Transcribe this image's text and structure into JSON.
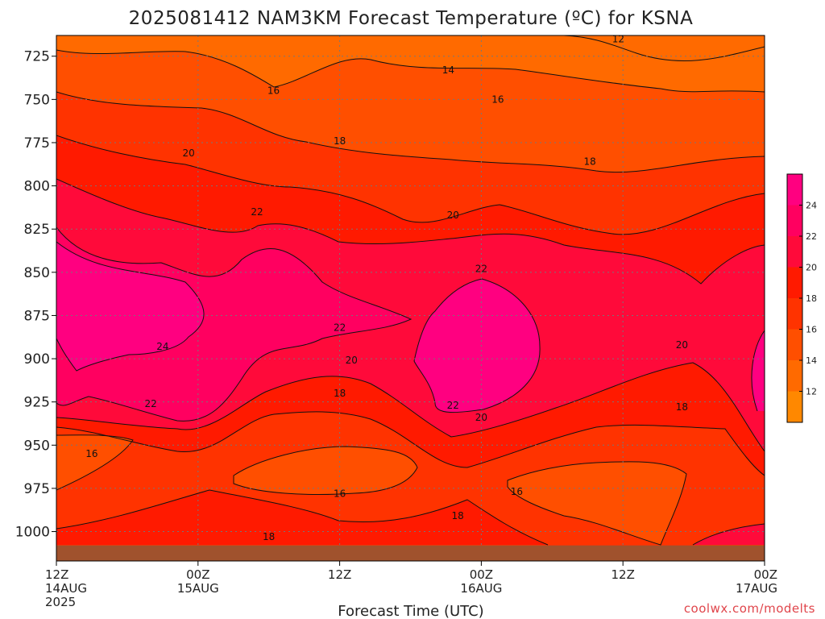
{
  "chart_data": {
    "type": "heatmap",
    "title": "2025081412 NAM3KM Forecast Temperature (ºC) for KSNA",
    "xlabel": "Forecast Time (UTC)",
    "ylabel": "",
    "credit": "coolwx.com/modelts",
    "x_ticks": [
      {
        "hours": 0,
        "line1": "12Z",
        "line2": "14AUG",
        "line3": "2025"
      },
      {
        "hours": 12,
        "line1": "00Z",
        "line2": "15AUG",
        "line3": ""
      },
      {
        "hours": 24,
        "line1": "12Z",
        "line2": "",
        "line3": ""
      },
      {
        "hours": 36,
        "line1": "00Z",
        "line2": "16AUG",
        "line3": ""
      },
      {
        "hours": 48,
        "line1": "12Z",
        "line2": "",
        "line3": ""
      },
      {
        "hours": 60,
        "line1": "00Z",
        "line2": "17AUG",
        "line3": ""
      }
    ],
    "x_range_hours": [
      0,
      60
    ],
    "y_ticks": [
      725,
      750,
      775,
      800,
      825,
      850,
      875,
      900,
      925,
      950,
      975,
      1000
    ],
    "y_range_hPa": [
      713,
      1017
    ],
    "y_inverted": true,
    "surface_pressure_hPa": 1008,
    "colorbar": {
      "levels": [
        12,
        14,
        16,
        18,
        20,
        22,
        24
      ],
      "colors": [
        "#ff8800",
        "#ff6a00",
        "#ff4f00",
        "#ff3300",
        "#ff1a00",
        "#ff0a3a",
        "#ff0060",
        "#ff0080"
      ]
    },
    "contour_labels": [
      {
        "value": "12",
        "h": 47.6,
        "p": 715
      },
      {
        "value": "14",
        "h": 33.2,
        "p": 733
      },
      {
        "value": "16",
        "h": 18.4,
        "p": 745
      },
      {
        "value": "16",
        "h": 37.4,
        "p": 750
      },
      {
        "value": "18",
        "h": 24.0,
        "p": 774
      },
      {
        "value": "18",
        "h": 45.2,
        "p": 786
      },
      {
        "value": "20",
        "h": 11.2,
        "p": 781
      },
      {
        "value": "20",
        "h": 33.6,
        "p": 817
      },
      {
        "value": "22",
        "h": 17.0,
        "p": 815
      },
      {
        "value": "22",
        "h": 36.0,
        "p": 848
      },
      {
        "value": "22",
        "h": 24.0,
        "p": 882
      },
      {
        "value": "24",
        "h": 9.0,
        "p": 893
      },
      {
        "value": "20",
        "h": 25.0,
        "p": 901
      },
      {
        "value": "18",
        "h": 24.0,
        "p": 920
      },
      {
        "value": "22",
        "h": 8.0,
        "p": 926
      },
      {
        "value": "22",
        "h": 33.6,
        "p": 927
      },
      {
        "value": "20",
        "h": 36.0,
        "p": 934
      },
      {
        "value": "20",
        "h": 53.0,
        "p": 892
      },
      {
        "value": "18",
        "h": 53.0,
        "p": 928
      },
      {
        "value": "16",
        "h": 3.0,
        "p": 955
      },
      {
        "value": "16",
        "h": 24.0,
        "p": 978
      },
      {
        "value": "16",
        "h": 39.0,
        "p": 977
      },
      {
        "value": "18",
        "h": 34.0,
        "p": 991
      },
      {
        "value": "18",
        "h": 18.0,
        "p": 1003
      }
    ]
  }
}
